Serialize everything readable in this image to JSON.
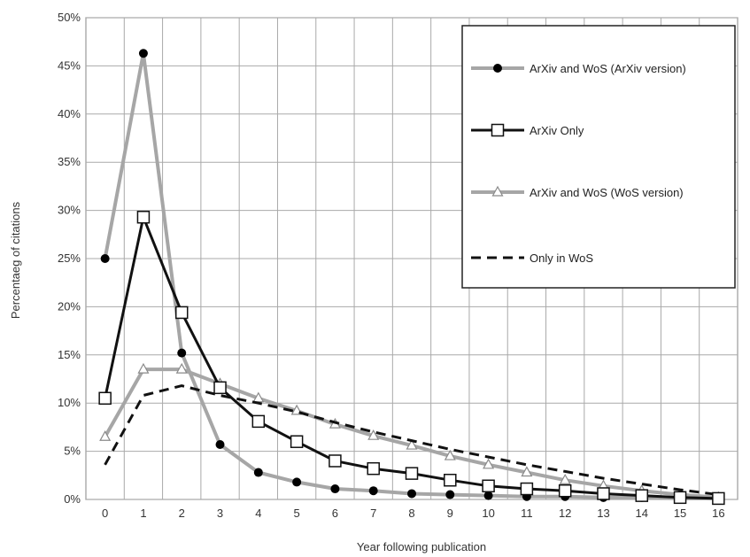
{
  "chart_data": {
    "type": "line",
    "title": "",
    "xlabel": "Year following publication",
    "ylabel": "Percentaeg of citations",
    "x": [
      0,
      1,
      2,
      3,
      4,
      5,
      6,
      7,
      8,
      9,
      10,
      11,
      12,
      13,
      14,
      15,
      16
    ],
    "xlim": [
      0,
      16
    ],
    "ylim": [
      0,
      50
    ],
    "y_ticks": [
      "0%",
      "5%",
      "10%",
      "15%",
      "20%",
      "25%",
      "30%",
      "35%",
      "40%",
      "45%",
      "50%"
    ],
    "x_ticks": [
      "0",
      "1",
      "2",
      "3",
      "4",
      "5",
      "6",
      "7",
      "8",
      "9",
      "10",
      "11",
      "12",
      "13",
      "14",
      "15",
      "16"
    ],
    "grid": true,
    "legend_position": "top-right",
    "series": [
      {
        "name": "ArXiv and WoS (ArXiv version)",
        "color": "#a6a6a6",
        "marker": "filled-circle",
        "line_style": "solid",
        "values": [
          25.0,
          46.3,
          15.2,
          5.7,
          2.8,
          1.8,
          1.1,
          0.9,
          0.6,
          0.5,
          0.4,
          0.3,
          0.3,
          0.2,
          0.2,
          0.1,
          0.1
        ]
      },
      {
        "name": "ArXiv Only",
        "color": "#111111",
        "marker": "open-square",
        "line_style": "solid",
        "values": [
          10.5,
          29.3,
          19.4,
          11.6,
          8.1,
          6.0,
          4.0,
          3.2,
          2.7,
          2.0,
          1.4,
          1.1,
          0.9,
          0.6,
          0.4,
          0.2,
          0.1
        ]
      },
      {
        "name": "ArXiv and WoS (WoS version)",
        "color": "#a6a6a6",
        "marker": "open-triangle",
        "line_style": "solid",
        "values": [
          6.5,
          13.5,
          13.5,
          12.0,
          10.5,
          9.2,
          7.8,
          6.6,
          5.6,
          4.5,
          3.6,
          2.8,
          2.0,
          1.4,
          0.9,
          0.5,
          0.2
        ]
      },
      {
        "name": "Only in WoS",
        "color": "#111111",
        "marker": "none",
        "line_style": "dashed",
        "values": [
          3.6,
          10.8,
          11.8,
          10.8,
          10.0,
          9.1,
          8.0,
          7.0,
          6.1,
          5.2,
          4.4,
          3.6,
          2.9,
          2.2,
          1.6,
          1.0,
          0.5
        ]
      }
    ]
  }
}
